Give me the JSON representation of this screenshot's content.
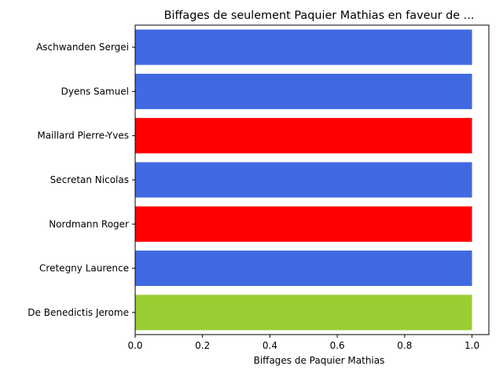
{
  "chart_data": {
    "type": "bar",
    "orientation": "horizontal",
    "title": "Biffages de seulement Paquier Mathias en faveur de ...",
    "xlabel": "Biffages de Paquier Mathias",
    "ylabel": "",
    "xlim": [
      0,
      1.05
    ],
    "xticks": [
      "0.0",
      "0.2",
      "0.4",
      "0.6",
      "0.8",
      "1.0"
    ],
    "categories": [
      "Aschwanden Sergei",
      "Dyens Samuel",
      "Maillard Pierre-Yves",
      "Secretan Nicolas",
      "Nordmann Roger",
      "Cretegny Laurence",
      "De Benedictis Jerome"
    ],
    "values": [
      1,
      1,
      1,
      1,
      1,
      1,
      1
    ],
    "colors": [
      "#4169e1",
      "#4169e1",
      "#ff0000",
      "#4169e1",
      "#ff0000",
      "#4169e1",
      "#9acd32"
    ],
    "grid": false,
    "legend": "none"
  }
}
